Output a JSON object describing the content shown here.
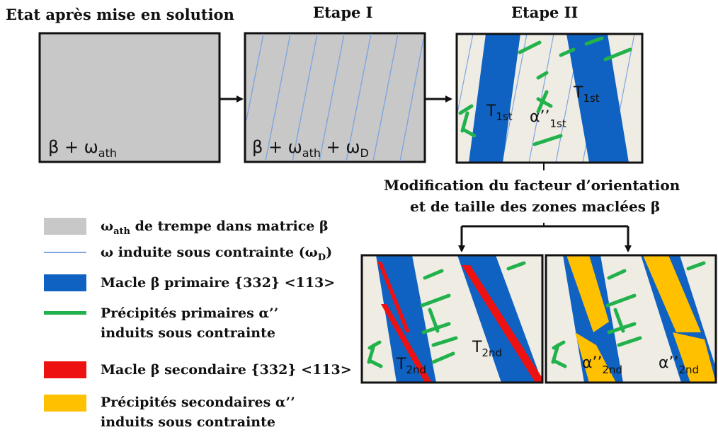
{
  "titles": {
    "state": "Etat après mise en solution",
    "step1": "Etape I",
    "step2": "Etape II"
  },
  "panel_labels": {
    "p1_base": "β + ω",
    "p1_sub": "ath",
    "p2_base": "β + ω",
    "p2_sub1": "ath",
    "p2_mid": " + ω",
    "p2_sub2": "D",
    "p3_t1_base": "T",
    "p3_t1_sub": "1st",
    "p3_t2_base": "T",
    "p3_t2_sub": "1st",
    "p3_alpha_base": "α’’",
    "p3_alpha_sub": "1st",
    "p4_t1_base": "T",
    "p4_t1_sub": "2nd",
    "p4_t2_base": "T",
    "p4_t2_sub": "2nd",
    "p5_a1_base": "α’’",
    "p5_a1_sub": "2nd",
    "p5_a2_base": "α’’",
    "p5_a2_sub": "2nd"
  },
  "modification_text": {
    "line1": "Modification du facteur d’orientation",
    "line2": "et de taille des zones maclées β"
  },
  "legend": [
    {
      "name": "omega-ath-swatch",
      "pre": "ω",
      "sub": "ath",
      "post": " de trempe dans matrice β",
      "color": "#c8c8c8"
    },
    {
      "name": "omega-d-swatch",
      "pre": "ω induite sous contrainte (ω",
      "sub": "D",
      "post": ")",
      "color": "#7fa5e0"
    },
    {
      "name": "primary-twin-swatch",
      "pre": "Macle β primaire {332} <113>",
      "sub": "",
      "post": "",
      "color": "#0f62c2"
    },
    {
      "name": "primary-precip-swatch",
      "pre": "Précipités primaires α’’",
      "sub": "",
      "post": "",
      "line2": "induits sous contrainte",
      "color": "#22b24c"
    },
    {
      "name": "secondary-twin-swatch",
      "pre": "Macle β secondaire {332} <113>",
      "sub": "",
      "post": "",
      "color": "#ee1111"
    },
    {
      "name": "secondary-precip-swatch",
      "pre": "Précipités secondaires α’’",
      "sub": "",
      "post": "",
      "line2": "induits sous contrainte",
      "color": "#ffc000"
    }
  ],
  "colors": {
    "matrix_gray": "#c8c8c8",
    "matrix_cream": "#efece4",
    "twin_blue": "#0f62c2",
    "precip_green": "#22b24c",
    "twin_red": "#ee1111",
    "precip_yellow": "#ffc000",
    "omega_line": "#7fa5e0",
    "border": "#111111"
  }
}
